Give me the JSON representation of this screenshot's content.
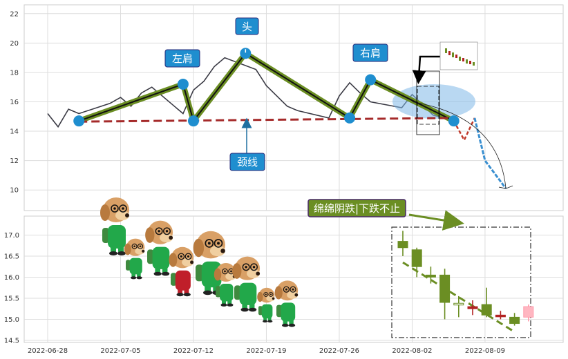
{
  "chart_data": [
    {
      "type": "line",
      "panel": "top",
      "ylim": [
        8.6,
        22.6
      ],
      "yticks": [
        "10",
        "12",
        "14",
        "16",
        "18",
        "20",
        "22"
      ],
      "grid": true,
      "price_series": {
        "x": [
          "2022-06-28",
          "2022-06-29",
          "2022-06-30",
          "2022-07-01",
          "2022-07-04",
          "2022-07-05",
          "2022-07-06",
          "2022-07-07",
          "2022-07-08",
          "2022-07-11",
          "2022-07-12",
          "2022-07-13",
          "2022-07-14",
          "2022-07-15",
          "2022-07-18",
          "2022-07-19",
          "2022-07-20",
          "2022-07-21",
          "2022-07-22",
          "2022-07-25",
          "2022-07-26",
          "2022-07-27",
          "2022-07-28",
          "2022-07-29",
          "2022-08-01",
          "2022-08-02",
          "2022-08-03",
          "2022-08-04",
          "2022-08-05"
        ],
        "y": [
          15.2,
          14.3,
          15.5,
          15.2,
          15.9,
          16.3,
          15.7,
          16.6,
          17.0,
          15.2,
          16.8,
          17.4,
          18.4,
          19.0,
          18.2,
          17.1,
          16.4,
          15.7,
          15.4,
          14.9,
          16.4,
          17.3,
          16.6,
          16.0,
          15.6,
          16.5,
          15.8,
          15.1,
          14.9
        ]
      },
      "pattern_points": {
        "x": [
          "2022-07-01",
          "2022-07-11",
          "2022-07-12",
          "2022-07-17",
          "2022-07-27",
          "2022-07-29",
          "2022-08-06"
        ],
        "y": [
          14.7,
          17.2,
          14.7,
          19.3,
          14.9,
          17.5,
          14.7
        ]
      },
      "neckline": {
        "x": [
          "2022-07-01",
          "2022-08-06"
        ],
        "y": [
          14.65,
          14.9
        ]
      },
      "projection": {
        "x": [
          "2022-08-06",
          "2022-08-07",
          "2022-08-08",
          "2022-08-09",
          "2022-08-11"
        ],
        "y": [
          14.7,
          13.4,
          14.9,
          12.0,
          10.1
        ]
      },
      "annotations": [
        {
          "id": "head",
          "text": "头"
        },
        {
          "id": "left_shoulder",
          "text": "左肩"
        },
        {
          "id": "right_shoulder",
          "text": "右肩"
        },
        {
          "id": "neckline",
          "text": "颈线"
        }
      ]
    },
    {
      "type": "candlestick",
      "panel": "bottom",
      "ylim": [
        14.45,
        17.45
      ],
      "yticks": [
        "14.5",
        "15.0",
        "15.5",
        "16.0",
        "16.5",
        "17.0"
      ],
      "xticks": [
        "2022-06-28",
        "2022-07-05",
        "2022-07-12",
        "2022-07-19",
        "2022-07-26",
        "2022-08-02",
        "2022-08-09"
      ],
      "grid": true,
      "candles": [
        {
          "date": "2022-08-01",
          "open": 16.85,
          "close": 16.7,
          "high": 17.1,
          "low": 16.5,
          "color": "#6b8e23"
        },
        {
          "date": "2022-08-02",
          "open": 16.65,
          "close": 16.25,
          "high": 16.7,
          "low": 16.0,
          "color": "#6b8e23"
        },
        {
          "date": "2022-08-03",
          "open": 16.05,
          "close": 16.0,
          "high": 16.25,
          "low": 15.85,
          "color": "#6b8e23"
        },
        {
          "date": "2022-08-04",
          "open": 16.05,
          "close": 15.4,
          "high": 16.2,
          "low": 15.0,
          "color": "#6b8e23"
        },
        {
          "date": "2022-08-05",
          "open": 15.38,
          "close": 15.35,
          "high": 15.55,
          "low": 15.05,
          "color": "#ffffff"
        },
        {
          "date": "2022-08-06",
          "open": 15.3,
          "close": 15.25,
          "high": 15.45,
          "low": 15.1,
          "color": "#b22222"
        },
        {
          "date": "2022-08-07",
          "open": 15.35,
          "close": 15.1,
          "high": 15.75,
          "low": 15.05,
          "color": "#6b8e23"
        },
        {
          "date": "2022-08-08",
          "open": 15.1,
          "close": 15.08,
          "high": 15.2,
          "low": 15.0,
          "color": "#b22222"
        },
        {
          "date": "2022-08-09",
          "open": 15.05,
          "close": 14.9,
          "high": 15.15,
          "low": 14.85,
          "color": "#6b8e23"
        },
        {
          "date": "2022-08-10",
          "open": 15.3,
          "close": 15.05,
          "high": 15.35,
          "low": 14.95,
          "color": "#ffb6c1"
        }
      ],
      "trend_line": {
        "x": [
          "2022-08-01",
          "2022-08-09"
        ],
        "y": [
          16.35,
          14.7
        ]
      },
      "annotations": [
        {
          "id": "falling",
          "text": "绵绵阴跌|下跌不止"
        }
      ]
    }
  ],
  "colors": {
    "price_line": "#3a3a44",
    "pattern_outline": "#6b8e23",
    "pattern_inner": "#111111",
    "marker": "#1f8ecf",
    "neckline": "#a52a2a",
    "callout_fill": "#1f8ecf",
    "callout_border": "#2a2a7a",
    "ann_fill": "#6b8e23",
    "ann_border": "#4b2a6a",
    "highlight": "#7fb8e8"
  }
}
